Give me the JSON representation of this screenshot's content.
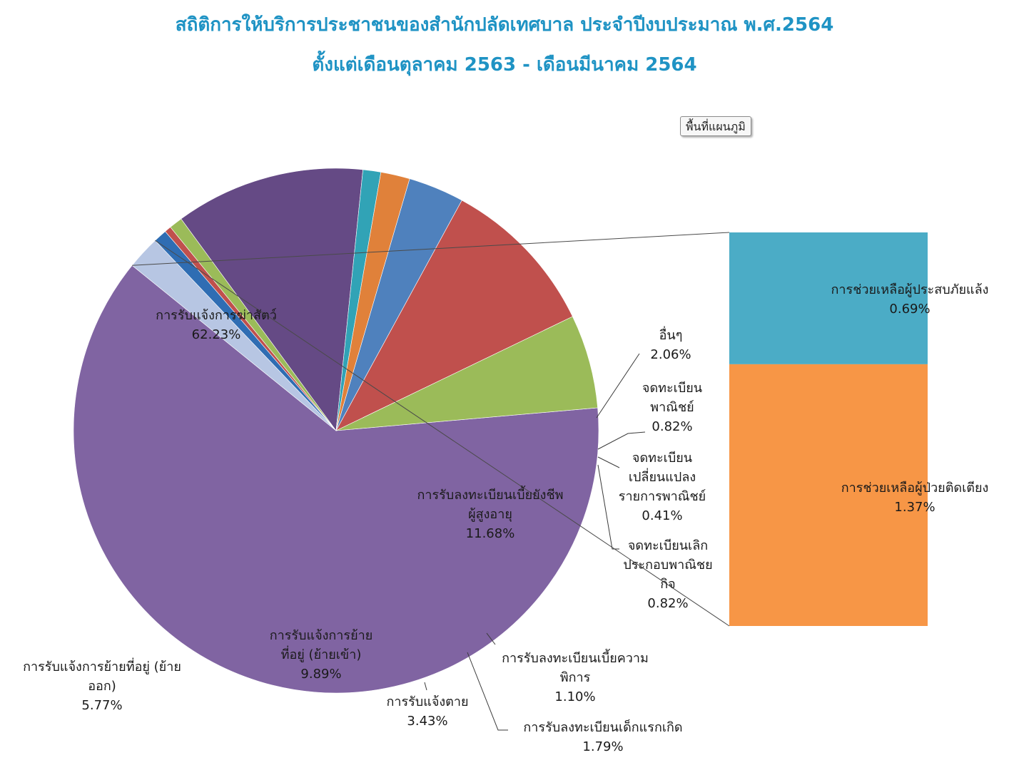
{
  "title": {
    "line1": "สถิติการให้บริการประชาชนของสำนักปลัดเทศบาล  ประจำปีงบประมาณ  พ.ศ.2564",
    "line2": "ตั้งแต่เดือนตุลาคม  2563 - เดือนมีนาคม  2564"
  },
  "plot_area_button": "พื้นที่แผนภูมิ",
  "chart_data": {
    "type": "pie",
    "subtype": "pie-of-bar",
    "title": "สถิติการให้บริการประชาชนของสำนักปลัดเทศบาล  ประจำปีงบประมาณ  พ.ศ.2564 ตั้งแต่เดือนตุลาคม  2563 - เดือนมีนาคม  2564",
    "unit": "%",
    "legend": "none",
    "slices": [
      {
        "label": "การรับแจ้งการฆ่าสัตว์",
        "value": 62.23,
        "label_text": "62.23%",
        "color": "#8064a2"
      },
      {
        "label": "อื่นๆ",
        "value": 2.06,
        "label_text": "2.06%",
        "color": "#b7c6e3"
      },
      {
        "label": "จดทะเบียน พาณิชย์",
        "value": 0.82,
        "label_text": "0.82%",
        "color": "#2f6db3"
      },
      {
        "label": "จดทะเบียน เปลี่ยนแปลง รายการพาณิชย์",
        "value": 0.41,
        "label_text": "0.41%",
        "color": "#c0504d"
      },
      {
        "label": "จดทะเบียนเลิก ประกอบพาณิชย กิจ",
        "value": 0.82,
        "label_text": "0.82%",
        "color": "#9bbb59"
      },
      {
        "label": "การรับลงทะเบียนเบี้ยยังชีพ ผู้สูงอายุ",
        "value": 11.68,
        "label_text": "11.68%",
        "color": "#654a85"
      },
      {
        "label": "การรับลงทะเบียนเบี้ยความ พิการ",
        "value": 1.1,
        "label_text": "1.10%",
        "color": "#31a3b6"
      },
      {
        "label": "การรับลงทะเบียนเด็กแรกเกิด",
        "value": 1.79,
        "label_text": "1.79%",
        "color": "#e0813a"
      },
      {
        "label": "การรับแจ้งตาย",
        "value": 3.43,
        "label_text": "3.43%",
        "color": "#4f81bd"
      },
      {
        "label": "การรับแจ้งการย้าย ที่อยู่ (ย้ายเข้า)",
        "value": 9.89,
        "label_text": "9.89%",
        "color": "#c0504d"
      },
      {
        "label": "การรับแจ้งการย้ายที่อยู่ (ย้าย ออก)",
        "value": 5.77,
        "label_text": "5.77%",
        "color": "#9bbb59"
      }
    ],
    "breakout": {
      "from_slice": "อื่นๆ",
      "items": [
        {
          "label": "การช่วยเหลือผู้ประสบภัยแล้ง",
          "value": 0.69,
          "label_text": "0.69%",
          "color": "#4bacc6"
        },
        {
          "label": "การช่วยเหลือผู้ป่วยติดเตียง",
          "value": 1.37,
          "label_text": "1.37%",
          "color": "#f79646"
        }
      ]
    }
  }
}
